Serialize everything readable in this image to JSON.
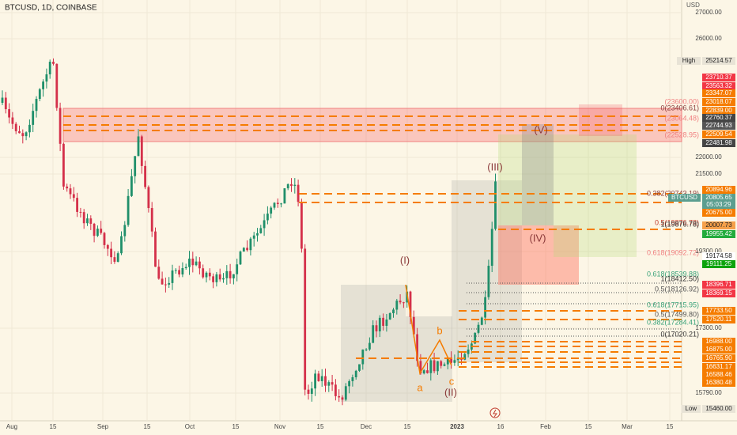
{
  "header": {
    "symbol": "BTCUSD, 1D, COINBASE"
  },
  "price_axis": {
    "unit": "USD",
    "labels": [
      "27000.00",
      "26000.00",
      "22000.00",
      "21500.00",
      "19300.00",
      "17300.00",
      "15790.00"
    ]
  },
  "badges": [
    {
      "text": "25214.57",
      "tag": "High",
      "color": "#e8e3d6",
      "ink": "#222"
    },
    {
      "text": "23710.37",
      "color": "#f23645",
      "ink": "#fff"
    },
    {
      "text": "23563.32",
      "color": "#f23645",
      "ink": "#fff"
    },
    {
      "text": "23347.07",
      "color": "#f57c00",
      "ink": "#fff"
    },
    {
      "text": "23018.07",
      "color": "#f57c00",
      "ink": "#fff"
    },
    {
      "text": "22839.00",
      "color": "#f57c00",
      "ink": "#fff"
    },
    {
      "text": "22760.37",
      "color": "#444",
      "ink": "#fff"
    },
    {
      "text": "22744.93",
      "color": "#555",
      "ink": "#fff"
    },
    {
      "text": "22509.54",
      "color": "#f57c00",
      "ink": "#fff"
    },
    {
      "text": "22481.98",
      "color": "#444",
      "ink": "#fff"
    },
    {
      "text": "20894.96",
      "color": "#f57c00",
      "ink": "#fff"
    },
    {
      "text": "20805.65",
      "tag": "BTCUSD",
      "color": "#5b9e8f",
      "ink": "#fff"
    },
    {
      "text": "05:03:29",
      "color": "#5b9e8f",
      "ink": "#fff"
    },
    {
      "text": "20675.00",
      "color": "#f57c00",
      "ink": "#fff"
    },
    {
      "text": "20007.73",
      "color": "#f5a04a",
      "ink": "#222"
    },
    {
      "text": "19955.42",
      "color": "#22ab3c",
      "ink": "#fff"
    },
    {
      "text": "19174.58",
      "color": "#ffffff",
      "ink": "#222"
    },
    {
      "text": "19111.25",
      "color": "#0ca30c",
      "ink": "#fff"
    },
    {
      "text": "18396.71",
      "color": "#f23645",
      "ink": "#fff"
    },
    {
      "text": "18369.15",
      "color": "#f23645",
      "ink": "#fff"
    },
    {
      "text": "17733.50",
      "color": "#f57c00",
      "ink": "#fff"
    },
    {
      "text": "17520.11",
      "color": "#f57c00",
      "ink": "#fff"
    },
    {
      "text": "16988.00",
      "color": "#f57c00",
      "ink": "#fff"
    },
    {
      "text": "16875.00",
      "color": "#f57c00",
      "ink": "#fff"
    },
    {
      "text": "16765.90",
      "color": "#f57c00",
      "ink": "#fff"
    },
    {
      "text": "16631.17",
      "color": "#f57c00",
      "ink": "#fff"
    },
    {
      "text": "16588.46",
      "color": "#f57c00",
      "ink": "#fff"
    },
    {
      "text": "16380.48",
      "color": "#f57c00",
      "ink": "#fff"
    },
    {
      "text": "15460.00",
      "tag": "Low",
      "color": "#e8e3d6",
      "ink": "#222"
    }
  ],
  "time_axis": [
    "Aug",
    "15",
    "Sep",
    "15",
    "Oct",
    "15",
    "Nov",
    "15",
    "Dec",
    "15",
    "2023",
    "16",
    "Feb",
    "15",
    "Mar",
    "15"
  ],
  "waves": [
    "(I)",
    "(II)",
    "(III)",
    "(IV)",
    "(V)",
    "a",
    "b",
    "c"
  ],
  "fib_labels": [
    "(23600.00)",
    "0(23406.61)",
    "(23064.48)",
    "(22528.95)",
    "0.382(20743.19)",
    "0.5(19876.78)",
    "1(19876.78)",
    "0.618(19092.72)",
    "0.618(18539.88)",
    "1(18412.50)",
    "0.5(18126.92)",
    "0.618(17715.95)",
    "0.5(17499.80)",
    "0.382(17284.41)",
    "0(17020.21)"
  ]
}
